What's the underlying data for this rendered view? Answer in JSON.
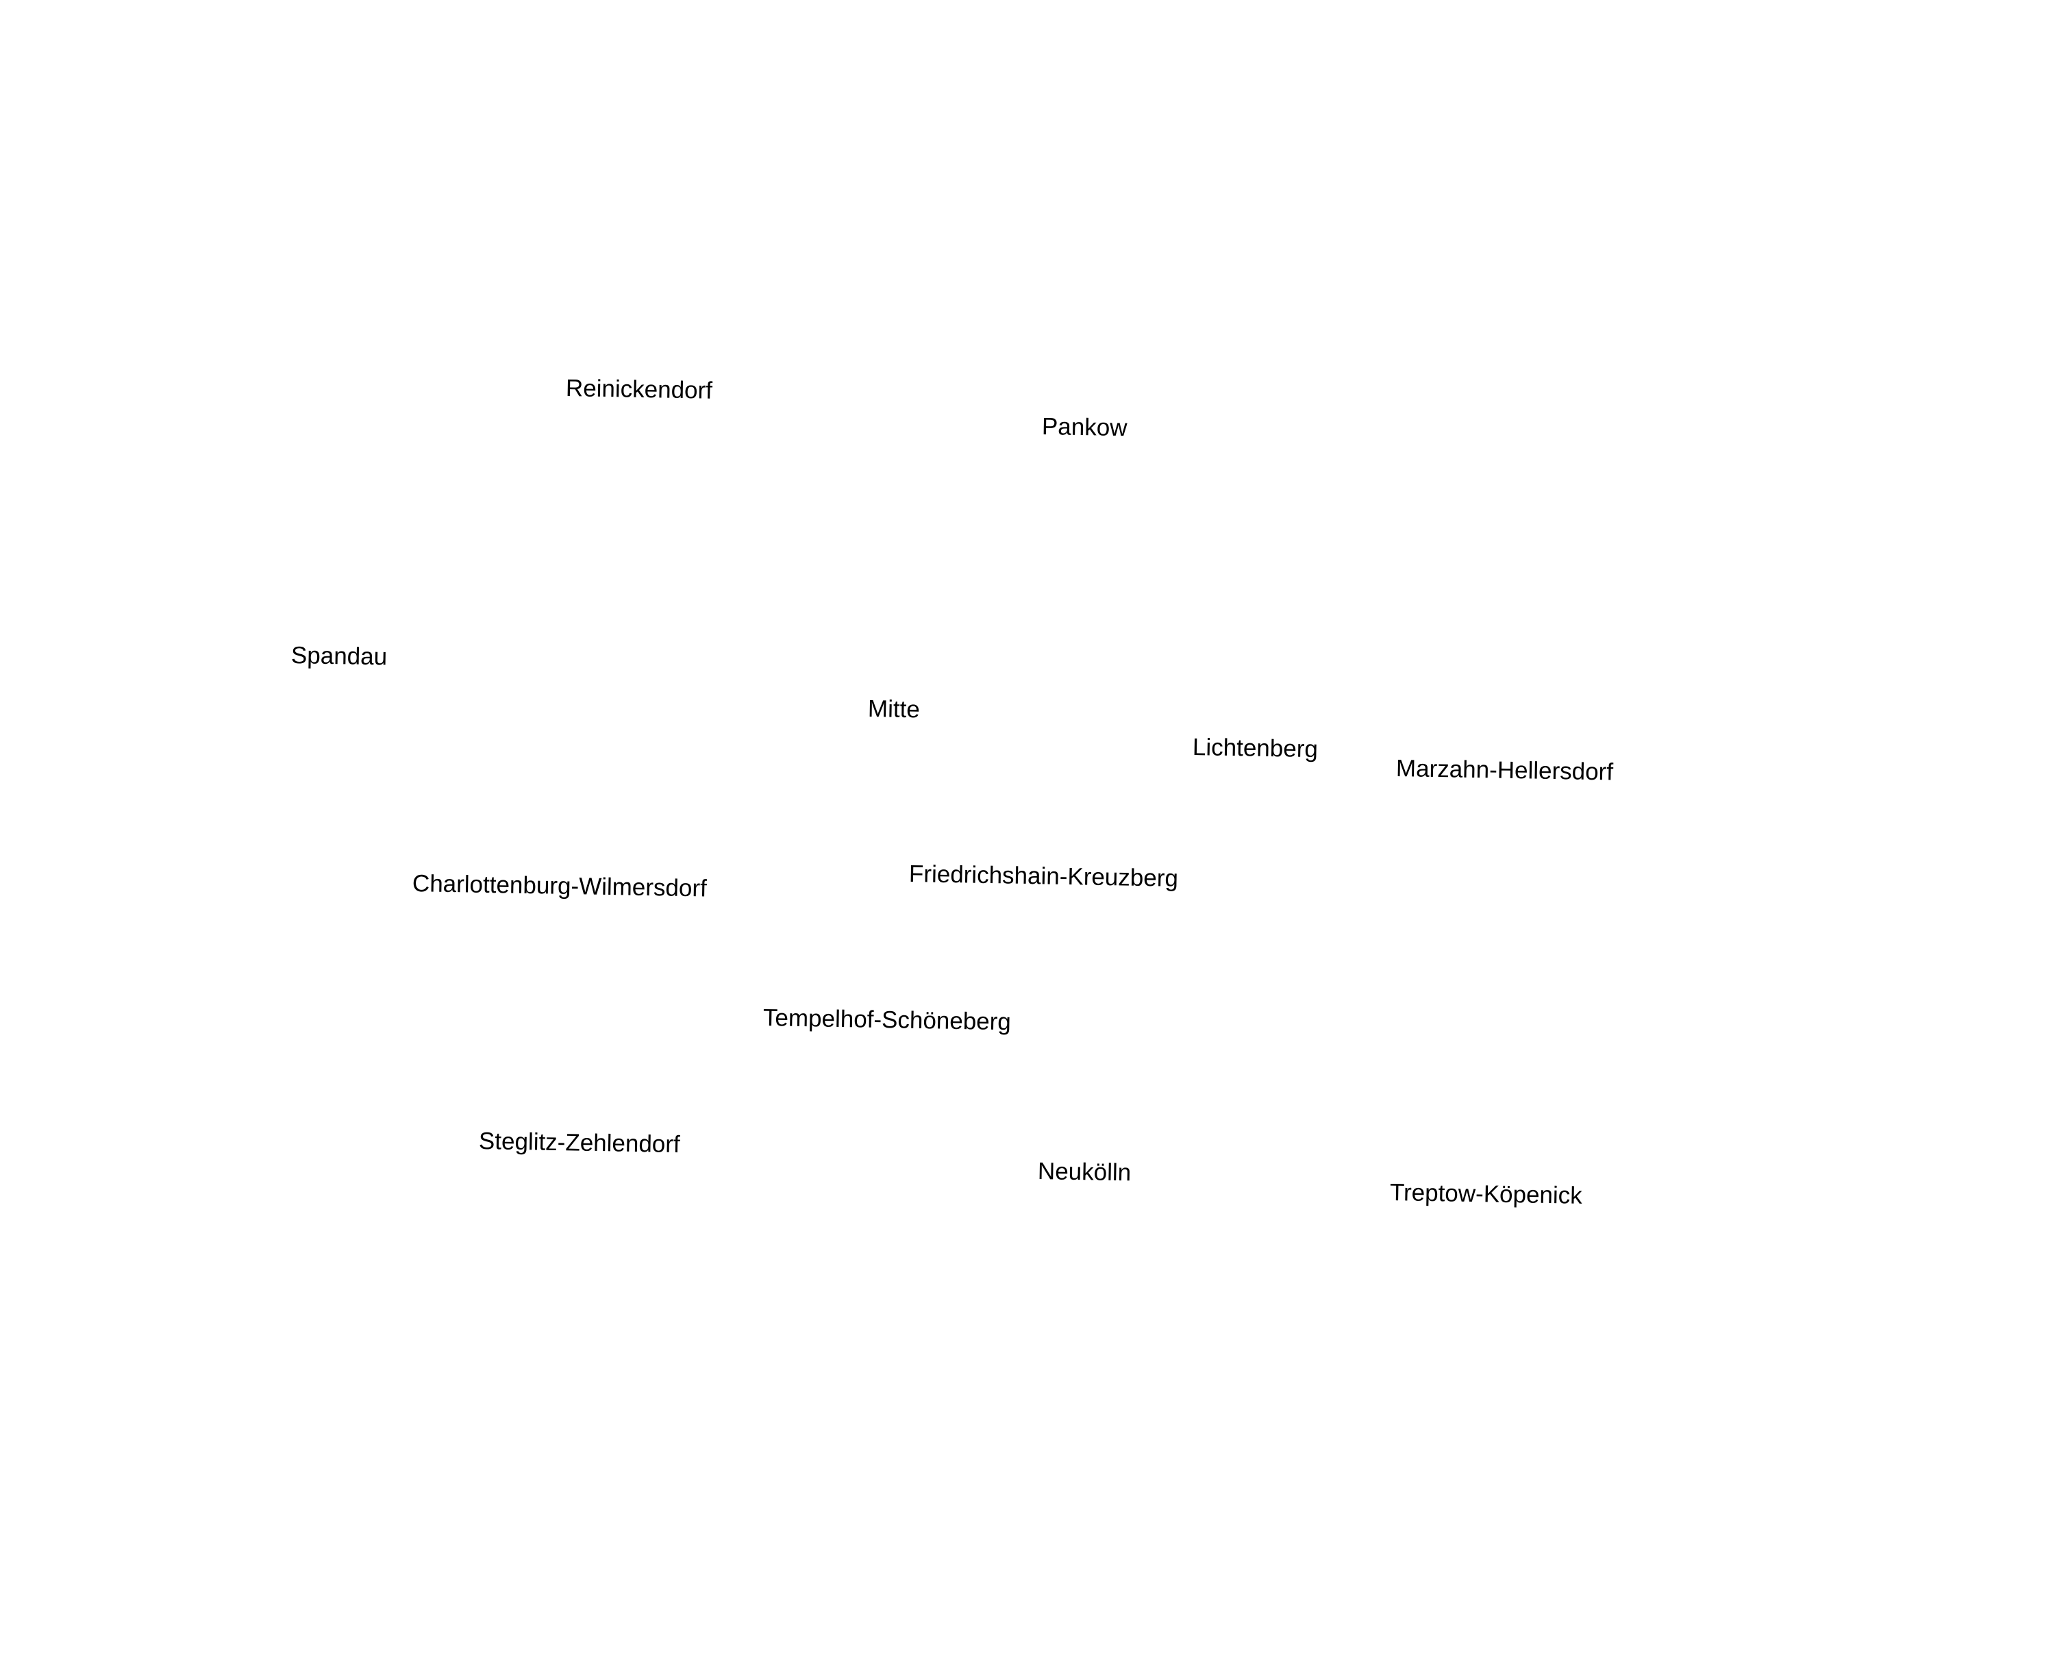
{
  "map": {
    "districts": [
      {
        "id": "reinickendorf",
        "label": "Reinickendorf"
      },
      {
        "id": "pankow",
        "label": "Pankow"
      },
      {
        "id": "spandau",
        "label": "Spandau"
      },
      {
        "id": "mitte",
        "label": "Mitte"
      },
      {
        "id": "lichtenberg",
        "label": "Lichtenberg"
      },
      {
        "id": "marzahn-hellersdorf",
        "label": "Marzahn-Hellersdorf"
      },
      {
        "id": "friedrichshain-kreuzberg",
        "label": "Friedrichshain-Kreuzberg"
      },
      {
        "id": "charlottenburg-wilmersdorf",
        "label": "Charlottenburg-Wilmersdorf"
      },
      {
        "id": "tempelhof-schoeneberg",
        "label": "Tempelhof-Schöneberg"
      },
      {
        "id": "steglitz-zehlendorf",
        "label": "Steglitz-Zehlendorf"
      },
      {
        "id": "neukoelln",
        "label": "Neukölln"
      },
      {
        "id": "treptow-koepenick",
        "label": "Treptow-Köpenick"
      }
    ],
    "colors": {
      "background": "#ffffff",
      "label_text": "#000000"
    }
  }
}
